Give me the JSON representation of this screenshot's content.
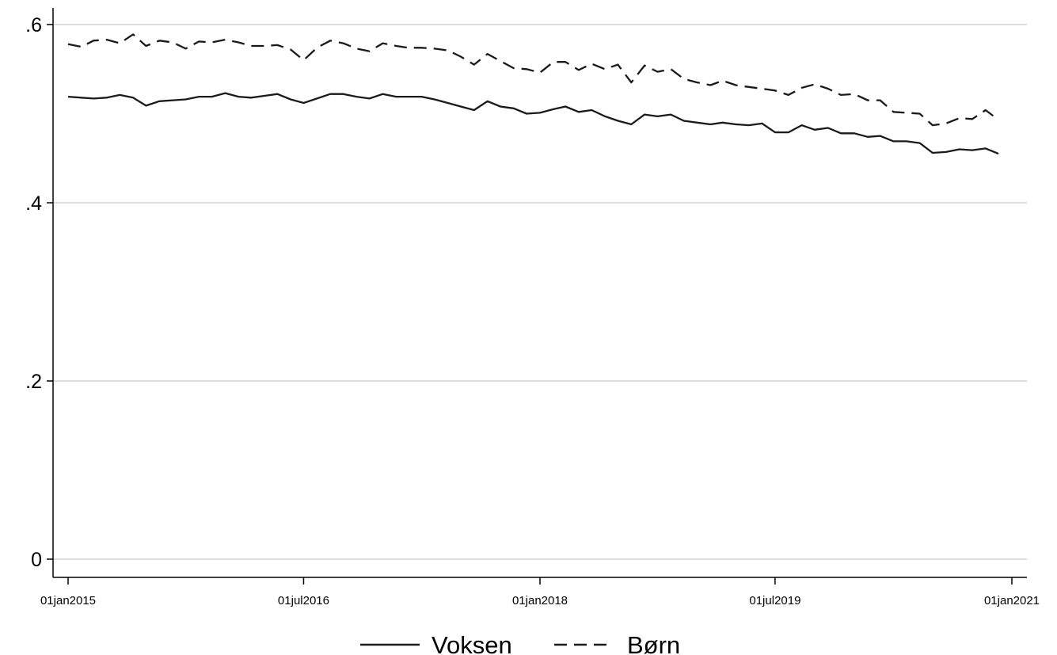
{
  "chart_data": {
    "type": "line",
    "title": "",
    "xlabel": "",
    "ylabel": "",
    "ylim": [
      0,
      0.6
    ],
    "yticks": [
      {
        "value": 0,
        "label": "0"
      },
      {
        "value": 0.2,
        "label": ".2"
      },
      {
        "value": 0.4,
        "label": ".4"
      },
      {
        "value": 0.6,
        "label": ".6"
      }
    ],
    "xlim": [
      "2015-01-01",
      "2021-01-01"
    ],
    "xticks": [
      {
        "value": "2015-01-01",
        "label": "01jan2015"
      },
      {
        "value": "2016-07-01",
        "label": "01jul2016"
      },
      {
        "value": "2018-01-01",
        "label": "01jan2018"
      },
      {
        "value": "2019-07-01",
        "label": "01jul2019"
      },
      {
        "value": "2021-01-01",
        "label": "01jan2021"
      }
    ],
    "grid": "horizontal",
    "legend_position": "bottom",
    "line_color": "#1a1a1a",
    "grid_color": "#c8c8c8",
    "x": [
      "2015-01",
      "2015-02",
      "2015-03",
      "2015-04",
      "2015-05",
      "2015-06",
      "2015-07",
      "2015-08",
      "2015-09",
      "2015-10",
      "2015-11",
      "2015-12",
      "2016-01",
      "2016-02",
      "2016-03",
      "2016-04",
      "2016-05",
      "2016-06",
      "2016-07",
      "2016-08",
      "2016-09",
      "2016-10",
      "2016-11",
      "2016-12",
      "2017-01",
      "2017-02",
      "2017-03",
      "2017-04",
      "2017-05",
      "2017-06",
      "2017-07",
      "2017-08",
      "2017-09",
      "2017-10",
      "2017-11",
      "2017-12",
      "2018-01",
      "2018-02",
      "2018-03",
      "2018-04",
      "2018-05",
      "2018-06",
      "2018-07",
      "2018-08",
      "2018-09",
      "2018-10",
      "2018-11",
      "2018-12",
      "2019-01",
      "2019-02",
      "2019-03",
      "2019-04",
      "2019-05",
      "2019-06",
      "2019-07",
      "2019-08",
      "2019-09",
      "2019-10",
      "2019-11",
      "2019-12",
      "2020-01",
      "2020-02",
      "2020-03",
      "2020-04",
      "2020-05",
      "2020-06",
      "2020-07",
      "2020-08",
      "2020-09",
      "2020-10",
      "2020-11",
      "2020-12"
    ],
    "series": [
      {
        "name": "Voksen",
        "style": "solid",
        "values": [
          0.519,
          0.518,
          0.517,
          0.518,
          0.521,
          0.518,
          0.509,
          0.514,
          0.515,
          0.516,
          0.519,
          0.519,
          0.523,
          0.519,
          0.518,
          0.52,
          0.522,
          0.516,
          0.512,
          0.517,
          0.522,
          0.522,
          0.519,
          0.517,
          0.522,
          0.519,
          0.519,
          0.519,
          0.516,
          0.512,
          0.508,
          0.504,
          0.514,
          0.508,
          0.506,
          0.5,
          0.501,
          0.505,
          0.508,
          0.502,
          0.504,
          0.497,
          0.492,
          0.488,
          0.499,
          0.497,
          0.499,
          0.492,
          0.49,
          0.488,
          0.49,
          0.488,
          0.487,
          0.489,
          0.479,
          0.479,
          0.487,
          0.482,
          0.484,
          0.478,
          0.478,
          0.474,
          0.475,
          0.469,
          0.469,
          0.467,
          0.456,
          0.457,
          0.46,
          0.459,
          0.461,
          0.455
        ]
      },
      {
        "name": "Børn",
        "style": "dashed",
        "values": [
          0.578,
          0.575,
          0.582,
          0.583,
          0.579,
          0.589,
          0.576,
          0.582,
          0.58,
          0.573,
          0.581,
          0.58,
          0.583,
          0.58,
          0.576,
          0.576,
          0.577,
          0.572,
          0.56,
          0.574,
          0.582,
          0.579,
          0.573,
          0.57,
          0.579,
          0.576,
          0.574,
          0.574,
          0.573,
          0.571,
          0.564,
          0.555,
          0.567,
          0.559,
          0.551,
          0.55,
          0.546,
          0.558,
          0.558,
          0.549,
          0.556,
          0.55,
          0.555,
          0.535,
          0.554,
          0.547,
          0.55,
          0.539,
          0.535,
          0.532,
          0.537,
          0.532,
          0.53,
          0.528,
          0.526,
          0.521,
          0.529,
          0.533,
          0.528,
          0.521,
          0.522,
          0.515,
          0.515,
          0.502,
          0.501,
          0.5,
          0.487,
          0.489,
          0.495,
          0.494,
          0.504,
          0.493
        ]
      }
    ]
  }
}
